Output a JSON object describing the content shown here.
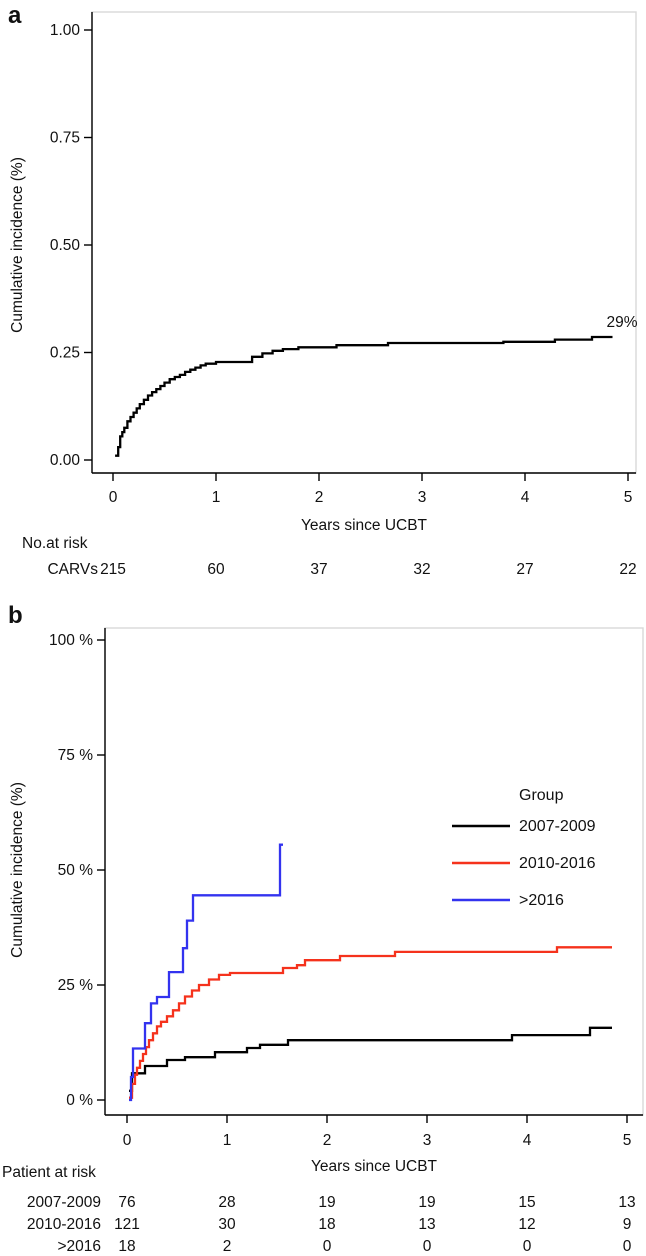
{
  "panels": [
    {
      "label": "a"
    },
    {
      "label": "b"
    }
  ],
  "colors": {
    "axis": "#000000",
    "text": "#111111",
    "box_border": "#d9d9d9",
    "series_black": "#000000",
    "series_red": "#f5321c",
    "series_blue": "#3333ef"
  },
  "chart_data": [
    {
      "id": "panel-a",
      "type": "line",
      "step": true,
      "xlabel": "Years since UCBT",
      "ylabel": "Cumulative incidence (%)",
      "xlim": [
        0,
        5
      ],
      "ylim": [
        0,
        1
      ],
      "xticks": [
        0,
        1,
        2,
        3,
        4,
        5
      ],
      "yticks": [
        0,
        0.25,
        0.5,
        0.75,
        1
      ],
      "ytick_labels": [
        "0.00",
        "0.25",
        "0.50",
        "0.75",
        "1.00"
      ],
      "grid": false,
      "annotation": {
        "text": "29%",
        "x": 4.85,
        "y": 0.305
      },
      "series": [
        {
          "name": "CARVs",
          "color": "#000000",
          "points": [
            [
              0.02,
              0.01
            ],
            [
              0.05,
              0.03
            ],
            [
              0.07,
              0.055
            ],
            [
              0.09,
              0.065
            ],
            [
              0.11,
              0.075
            ],
            [
              0.14,
              0.09
            ],
            [
              0.17,
              0.1
            ],
            [
              0.2,
              0.11
            ],
            [
              0.23,
              0.12
            ],
            [
              0.26,
              0.13
            ],
            [
              0.3,
              0.14
            ],
            [
              0.34,
              0.15
            ],
            [
              0.38,
              0.158
            ],
            [
              0.42,
              0.165
            ],
            [
              0.46,
              0.172
            ],
            [
              0.5,
              0.18
            ],
            [
              0.55,
              0.188
            ],
            [
              0.6,
              0.193
            ],
            [
              0.65,
              0.198
            ],
            [
              0.7,
              0.205
            ],
            [
              0.75,
              0.21
            ],
            [
              0.8,
              0.215
            ],
            [
              0.85,
              0.22
            ],
            [
              0.9,
              0.224
            ],
            [
              1.0,
              0.228
            ],
            [
              1.35,
              0.24
            ],
            [
              1.45,
              0.248
            ],
            [
              1.55,
              0.254
            ],
            [
              1.65,
              0.258
            ],
            [
              1.8,
              0.262
            ],
            [
              2.17,
              0.267
            ],
            [
              2.67,
              0.272
            ],
            [
              3.79,
              0.275
            ],
            [
              4.29,
              0.28
            ],
            [
              4.65,
              0.286
            ],
            [
              4.85,
              0.286
            ]
          ]
        }
      ],
      "risk_table": {
        "title": "No.at risk",
        "rows": [
          {
            "label": "CARVs",
            "values": [
              "215",
              "60",
              "37",
              "32",
              "27",
              "22"
            ]
          }
        ]
      }
    },
    {
      "id": "panel-b",
      "type": "line",
      "step": true,
      "xlabel": "Years since UCBT",
      "ylabel": "Cumulative incidence (%)",
      "xlim": [
        0,
        5
      ],
      "ylim": [
        0,
        100
      ],
      "xticks": [
        0,
        1,
        2,
        3,
        4,
        5
      ],
      "yticks": [
        0,
        25,
        50,
        75,
        100
      ],
      "ytick_labels": [
        "0 %",
        "25 %",
        "50 %",
        "75 %",
        "100 %"
      ],
      "grid": false,
      "legend": {
        "title": "Group",
        "entries": [
          {
            "label": "2007-2009",
            "color": "#000000"
          },
          {
            "label": "2010-2016",
            "color": "#f5321c"
          },
          {
            "label": ">2016",
            "color": "#3333ef"
          }
        ]
      },
      "series": [
        {
          "name": "2007-2009",
          "color": "#000000",
          "points": [
            [
              0.02,
              2.0
            ],
            [
              0.05,
              5.8
            ],
            [
              0.18,
              7.4
            ],
            [
              0.4,
              8.7
            ],
            [
              0.58,
              9.3
            ],
            [
              0.88,
              10.4
            ],
            [
              1.2,
              11.3
            ],
            [
              1.33,
              12.0
            ],
            [
              1.61,
              13.0
            ],
            [
              3.85,
              14.1
            ],
            [
              4.63,
              15.7
            ],
            [
              4.85,
              15.7
            ]
          ]
        },
        {
          "name": "2010-2016",
          "color": "#f5321c",
          "points": [
            [
              0.02,
              0.5
            ],
            [
              0.05,
              3.5
            ],
            [
              0.08,
              5.5
            ],
            [
              0.1,
              7.0
            ],
            [
              0.13,
              8.5
            ],
            [
              0.16,
              10.0
            ],
            [
              0.19,
              11.5
            ],
            [
              0.22,
              13.0
            ],
            [
              0.26,
              14.5
            ],
            [
              0.3,
              16.0
            ],
            [
              0.34,
              17.0
            ],
            [
              0.4,
              18.2
            ],
            [
              0.46,
              19.5
            ],
            [
              0.52,
              21.0
            ],
            [
              0.58,
              22.5
            ],
            [
              0.65,
              23.8
            ],
            [
              0.72,
              25.0
            ],
            [
              0.82,
              26.2
            ],
            [
              0.92,
              27.2
            ],
            [
              1.03,
              27.6
            ],
            [
              1.56,
              28.7
            ],
            [
              1.7,
              29.3
            ],
            [
              1.78,
              30.4
            ],
            [
              2.13,
              31.3
            ],
            [
              2.68,
              32.2
            ],
            [
              4.3,
              33.2
            ],
            [
              4.85,
              33.2
            ]
          ]
        },
        {
          "name": ">2016",
          "color": "#3333ef",
          "points": [
            [
              0.02,
              0.0
            ],
            [
              0.04,
              5.0
            ],
            [
              0.06,
              11.2
            ],
            [
              0.18,
              16.7
            ],
            [
              0.24,
              21.0
            ],
            [
              0.3,
              22.4
            ],
            [
              0.42,
              27.8
            ],
            [
              0.56,
              33.0
            ],
            [
              0.6,
              39.0
            ],
            [
              0.66,
              44.5
            ],
            [
              1.53,
              55.5
            ],
            [
              1.56,
              55.5
            ]
          ]
        }
      ],
      "risk_table": {
        "title": "Patient at risk",
        "rows": [
          {
            "label": "2007-2009",
            "values": [
              "76",
              "28",
              "19",
              "19",
              "15",
              "13"
            ]
          },
          {
            "label": "2010-2016",
            "values": [
              "121",
              "30",
              "18",
              "13",
              "12",
              "9"
            ]
          },
          {
            "label": ">2016",
            "values": [
              "18",
              "2",
              "0",
              "0",
              "0",
              "0"
            ]
          }
        ]
      }
    }
  ]
}
